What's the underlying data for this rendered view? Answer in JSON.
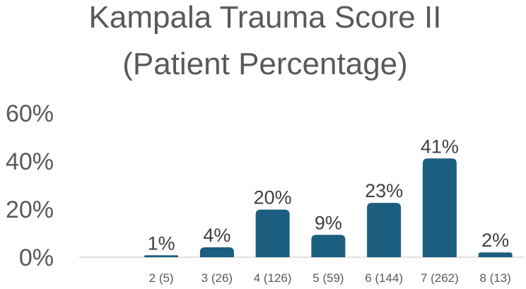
{
  "chart_data": {
    "type": "bar",
    "title": [
      "Kampala Trauma Score II",
      "(Patient Percentage)"
    ],
    "xlabel": "",
    "ylabel": "",
    "categories": [
      "2 (5)",
      "3 (26)",
      "4 (126)",
      "5 (59)",
      "6 (144)",
      "7 (262)",
      "8 (13)"
    ],
    "values": [
      0.8,
      4.1,
      19.8,
      9.3,
      22.6,
      41.1,
      2.0
    ],
    "data_labels": [
      "1%",
      "4%",
      "20%",
      "9%",
      "23%",
      "41%",
      "2%"
    ],
    "yticks": [
      0,
      20,
      40,
      60
    ],
    "ytick_labels": [
      "0%",
      "20%",
      "40%",
      "60%"
    ],
    "ylim": [
      0,
      60
    ],
    "grid": false,
    "legend": "none",
    "colors": {
      "bar": "#1B5E80",
      "axis": "#D9D9D9",
      "text": "#595959"
    }
  }
}
